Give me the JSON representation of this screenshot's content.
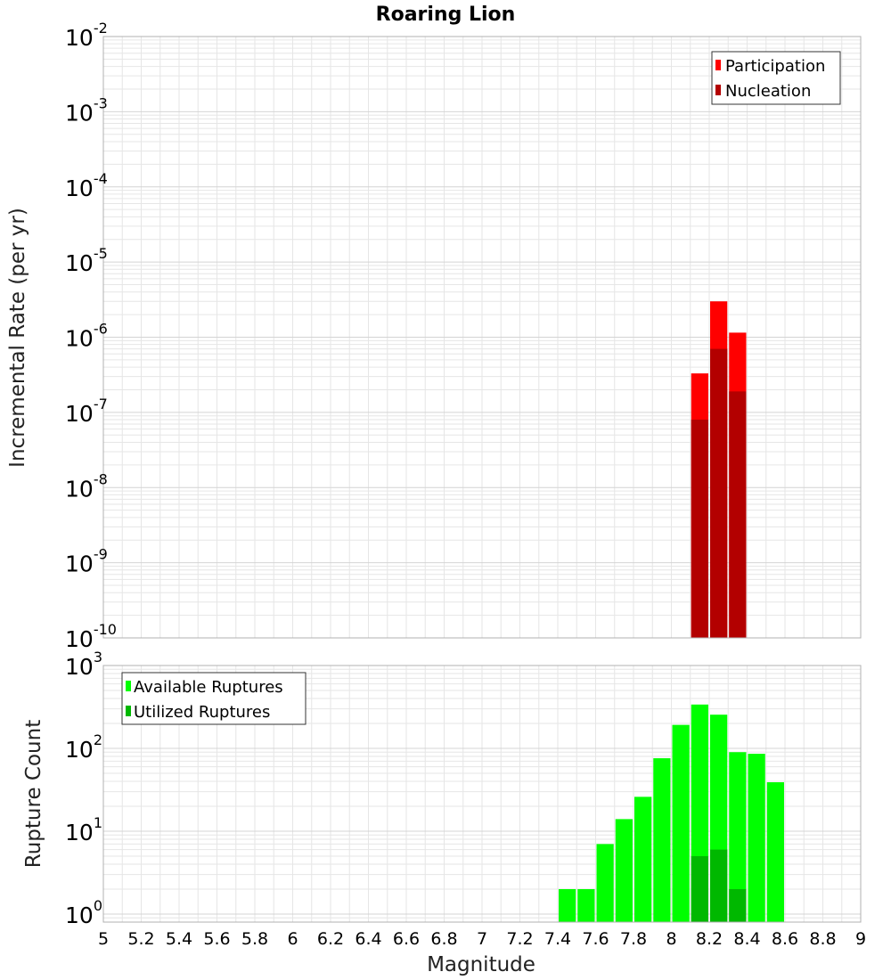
{
  "colors": {
    "participation": "#ff0000",
    "nucleation": "#b30000",
    "available": "#00ff00",
    "utilized": "#00b800",
    "grid": "#e6e6e6",
    "frame": "#b0b0b0"
  },
  "chart_data": [
    {
      "type": "bar",
      "title": "Roaring Lion",
      "xlabel": "",
      "ylabel": "Incremental Rate (per yr)",
      "yscale": "log",
      "ylim": [
        1e-10,
        0.01
      ],
      "xlim": [
        5,
        9
      ],
      "bin_width": 0.1,
      "legend_position": "top-right",
      "x": [
        8.15,
        8.25,
        8.35
      ],
      "series": [
        {
          "name": "Participation",
          "color": "#ff0000",
          "values": [
            3.3e-07,
            3e-06,
            1.15e-06
          ]
        },
        {
          "name": "Nucleation",
          "color": "#b30000",
          "values": [
            8e-08,
            7e-07,
            1.9e-07
          ]
        }
      ],
      "yticks": [
        {
          "base": "10",
          "exp": "-10",
          "value": 1e-10
        },
        {
          "base": "10",
          "exp": "-9",
          "value": 1e-09
        },
        {
          "base": "10",
          "exp": "-8",
          "value": 1e-08
        },
        {
          "base": "10",
          "exp": "-7",
          "value": 1e-07
        },
        {
          "base": "10",
          "exp": "-6",
          "value": 1e-06
        },
        {
          "base": "10",
          "exp": "-5",
          "value": 1e-05
        },
        {
          "base": "10",
          "exp": "-4",
          "value": 0.0001
        },
        {
          "base": "10",
          "exp": "-3",
          "value": 0.001
        },
        {
          "base": "10",
          "exp": "-2",
          "value": 0.01
        }
      ]
    },
    {
      "type": "bar",
      "title": "",
      "xlabel": "Magnitude",
      "ylabel": "Rupture Count",
      "yscale": "log",
      "ylim": [
        0.8,
        1000
      ],
      "xlim": [
        5,
        9
      ],
      "bin_width": 0.1,
      "legend_position": "top-left",
      "x": [
        7.45,
        7.55,
        7.65,
        7.75,
        7.85,
        7.95,
        8.05,
        8.15,
        8.25,
        8.35,
        8.45,
        8.55
      ],
      "series": [
        {
          "name": "Available Ruptures",
          "color": "#00ff00",
          "values": [
            2,
            2,
            7,
            14,
            26,
            76,
            192,
            338,
            255,
            90,
            86,
            39
          ]
        },
        {
          "name": "Utilized Ruptures",
          "color": "#00b800",
          "values": [
            0,
            0,
            0,
            0,
            0,
            0,
            0,
            5,
            6,
            2,
            0,
            0
          ]
        }
      ],
      "yticks": [
        {
          "base": "10",
          "exp": "0",
          "value": 1
        },
        {
          "base": "10",
          "exp": "1",
          "value": 10
        },
        {
          "base": "10",
          "exp": "2",
          "value": 100
        },
        {
          "base": "10",
          "exp": "3",
          "value": 1000
        }
      ],
      "xticks": [
        "5",
        "5.2",
        "5.4",
        "5.6",
        "5.8",
        "6",
        "6.2",
        "6.4",
        "6.6",
        "6.8",
        "7",
        "7.2",
        "7.4",
        "7.6",
        "7.8",
        "8",
        "8.2",
        "8.4",
        "8.6",
        "8.8",
        "9"
      ]
    }
  ]
}
